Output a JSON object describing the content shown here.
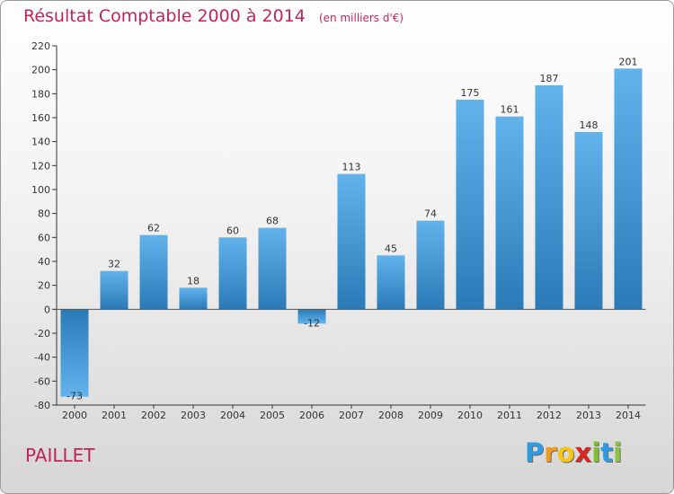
{
  "chart_data": {
    "type": "bar",
    "title": "Résultat Comptable 2000 à 2014",
    "unit_label": "(en milliers d'€)",
    "categories": [
      "2000",
      "2001",
      "2002",
      "2003",
      "2004",
      "2005",
      "2006",
      "2007",
      "2008",
      "2009",
      "2010",
      "2011",
      "2012",
      "2013",
      "2014"
    ],
    "values": [
      -73,
      32,
      62,
      18,
      60,
      68,
      -12,
      113,
      45,
      74,
      175,
      161,
      187,
      148,
      201
    ],
    "ylim": [
      -80,
      220
    ],
    "yticks": [
      -80,
      -60,
      -40,
      -20,
      0,
      20,
      40,
      60,
      80,
      100,
      120,
      140,
      160,
      180,
      200,
      220
    ],
    "grid": false,
    "xlabel": "",
    "ylabel": "",
    "bar_color_light": "#62b3ec",
    "bar_color_dark": "#2a7ab7"
  },
  "commune_name": "PAILLET",
  "brand": {
    "letters": [
      "P",
      "r",
      "o",
      "x",
      "i",
      "t",
      "i"
    ],
    "colors": [
      "#2f9be0",
      "#f29a1f",
      "#f5c518",
      "#d8261f",
      "#7fbf2a",
      "#2f9be0",
      "#8cc63f"
    ]
  },
  "colors": {
    "title": "#c0245a",
    "axis": "#333333"
  }
}
